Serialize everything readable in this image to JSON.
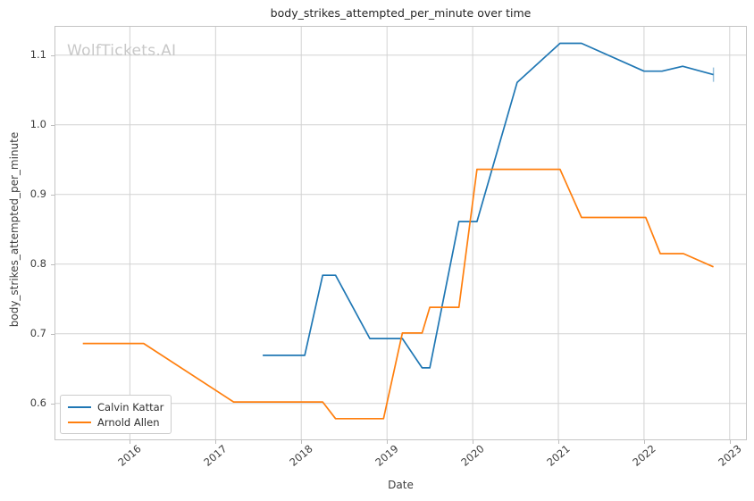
{
  "watermark": "WolfTickets.AI",
  "style_colors": {
    "grid": "#d2d2d2",
    "spine": "#c4c4c4",
    "tick_mark": "#bdbdbd",
    "tick_text": "#3d3d3d",
    "title_text": "#262626",
    "watermark_text": "#c8c8c8"
  },
  "chart_data": {
    "type": "line",
    "title": "body_strikes_attempted_per_minute over time",
    "xlabel": "Date",
    "ylabel": "body_strikes_attempted_per_minute",
    "grid": true,
    "legend_position": "lower left",
    "xlim": [
      2015.12,
      2023.2
    ],
    "ylim": [
      0.547,
      1.142
    ],
    "x_ticks": [
      2016,
      2017,
      2018,
      2019,
      2020,
      2021,
      2022,
      2023
    ],
    "y_ticks": [
      "0.6",
      "0.7",
      "0.8",
      "0.9",
      "1.0",
      "1.1"
    ],
    "series": [
      {
        "name": "Calvin Kattar",
        "color": "#1f77b4",
        "end_marker": "vertical-tick",
        "points": [
          [
            2017.55,
            0.669
          ],
          [
            2018.04,
            0.669
          ],
          [
            2018.25,
            0.784
          ],
          [
            2018.4,
            0.784
          ],
          [
            2018.8,
            0.693
          ],
          [
            2019.18,
            0.693
          ],
          [
            2019.41,
            0.651
          ],
          [
            2019.5,
            0.651
          ],
          [
            2019.84,
            0.861
          ],
          [
            2020.05,
            0.861
          ],
          [
            2020.52,
            1.061
          ],
          [
            2021.02,
            1.117
          ],
          [
            2021.27,
            1.117
          ],
          [
            2022.0,
            1.077
          ],
          [
            2022.21,
            1.077
          ],
          [
            2022.45,
            1.084
          ],
          [
            2022.81,
            1.072
          ]
        ]
      },
      {
        "name": "Arnold Allen",
        "color": "#ff7f0e",
        "end_marker": "none",
        "points": [
          [
            2015.45,
            0.686
          ],
          [
            2016.16,
            0.686
          ],
          [
            2017.21,
            0.602
          ],
          [
            2018.25,
            0.602
          ],
          [
            2018.4,
            0.578
          ],
          [
            2018.96,
            0.578
          ],
          [
            2019.18,
            0.701
          ],
          [
            2019.41,
            0.701
          ],
          [
            2019.5,
            0.738
          ],
          [
            2019.84,
            0.738
          ],
          [
            2020.05,
            0.936
          ],
          [
            2021.02,
            0.936
          ],
          [
            2021.27,
            0.867
          ],
          [
            2022.02,
            0.867
          ],
          [
            2022.19,
            0.815
          ],
          [
            2022.46,
            0.815
          ],
          [
            2022.81,
            0.796
          ]
        ]
      }
    ]
  }
}
